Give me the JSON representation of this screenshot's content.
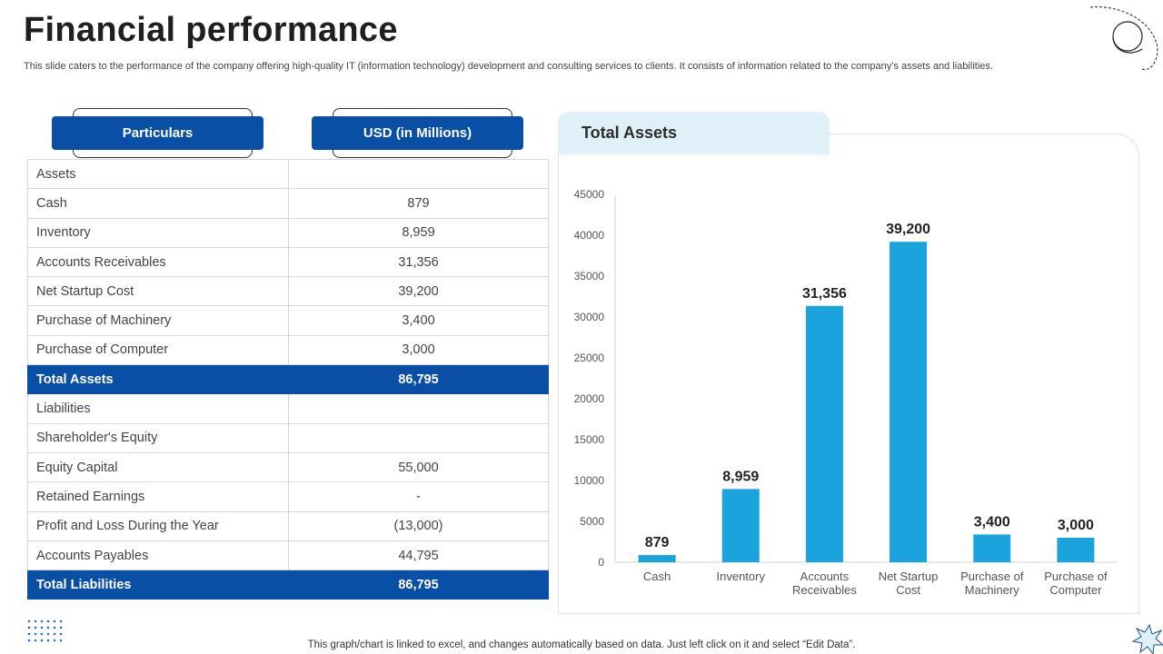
{
  "page": {
    "title": "Financial performance",
    "subtitle": "This slide caters to the performance of the company offering high-quality IT (information technology) development and consulting services to clients. It consists of information related to the company’s assets and liabilities.",
    "footer": "This graph/chart is linked to excel,  and changes automatically based on data. Just left click on it and select “Edit Data”."
  },
  "table": {
    "headers": [
      "Particulars",
      "USD (in Millions)"
    ],
    "rows": [
      {
        "label": "Assets",
        "value": ""
      },
      {
        "label": "Cash",
        "value": "879"
      },
      {
        "label": "Inventory",
        "value": "8,959"
      },
      {
        "label": "Accounts Receivables",
        "value": "31,356"
      },
      {
        "label": "Net Startup Cost",
        "value": "39,200"
      },
      {
        "label": "Purchase of Machinery",
        "value": "3,400"
      },
      {
        "label": "Purchase of Computer",
        "value": "3,000"
      },
      {
        "label": "Total Assets",
        "value": "86,795"
      },
      {
        "label": "Liabilities",
        "value": ""
      },
      {
        "label": "Shareholder's Equity",
        "value": ""
      },
      {
        "label": "Equity Capital",
        "value": "55,000"
      },
      {
        "label": "Retained Earnings",
        "value": "-"
      },
      {
        "label": "Profit and Loss During the Year",
        "value": "(13,000)"
      },
      {
        "label": "Accounts Payables",
        "value": "44,795"
      },
      {
        "label": "Total Liabilities",
        "value": "86,795"
      }
    ]
  },
  "chart_data": {
    "type": "bar",
    "title": "Total Assets",
    "categories": [
      [
        "Cash"
      ],
      [
        "Inventory"
      ],
      [
        "Accounts",
        "Receivables"
      ],
      [
        "Net Startup",
        "Cost"
      ],
      [
        "Purchase of",
        "Machinery"
      ],
      [
        "Purchase of",
        "Computer"
      ]
    ],
    "values": [
      879,
      8959,
      31356,
      39200,
      3400,
      3000
    ],
    "data_labels": [
      "879",
      "8,959",
      "31,356",
      "39,200",
      "3,400",
      "3,000"
    ],
    "yticks": [
      0,
      5000,
      10000,
      15000,
      20000,
      25000,
      30000,
      35000,
      40000,
      45000
    ],
    "ylim": [
      0,
      45000
    ],
    "xlabel": "",
    "ylabel": "",
    "grid": false
  },
  "colors": {
    "primary": "#0a4fa6",
    "bar": "#1aa3dc",
    "tab_bg": "#dff0f8"
  }
}
